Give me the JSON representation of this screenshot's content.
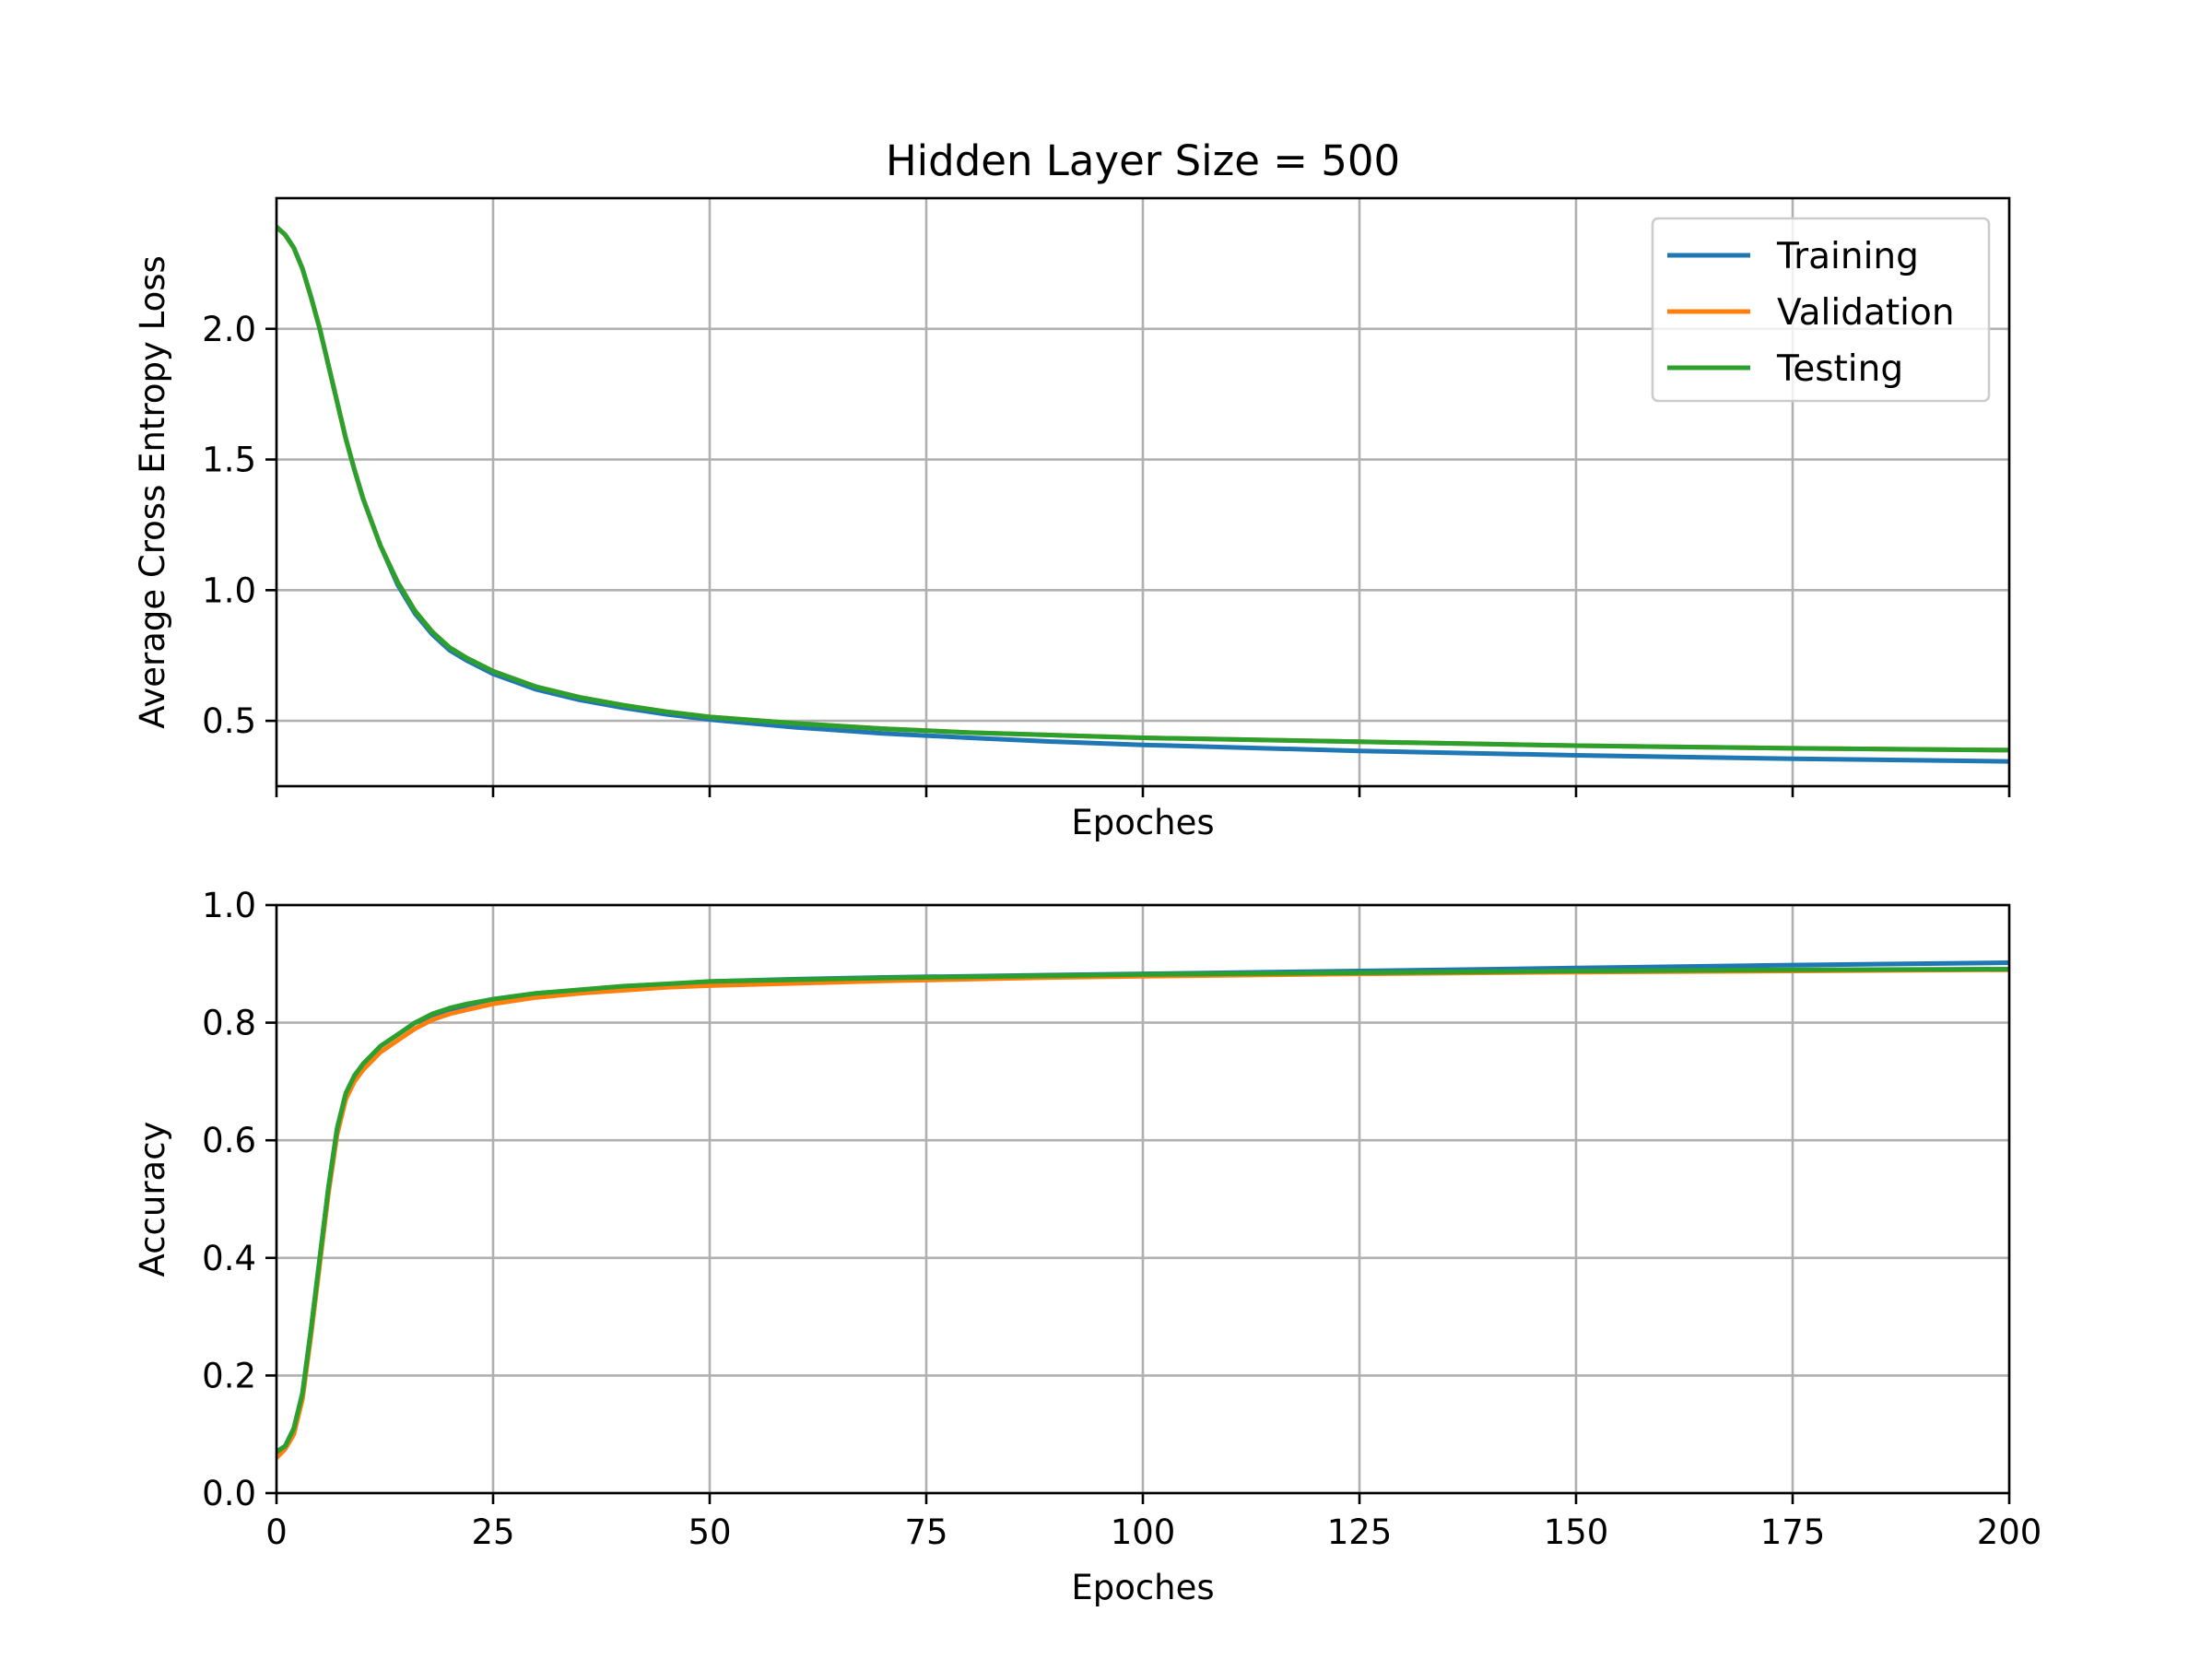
{
  "chart_data": [
    {
      "type": "line",
      "title": "Hidden Layer Size = 500",
      "xlabel": "Epoches",
      "ylabel": "Average Cross Entropy Loss",
      "xlim": [
        0,
        200
      ],
      "ylim": [
        0.25,
        2.5
      ],
      "xticks": [
        0,
        25,
        50,
        75,
        100,
        125,
        150,
        175,
        200
      ],
      "show_x_tick_labels": false,
      "yticks": [
        0.5,
        1.0,
        1.5,
        2.0
      ],
      "ytick_labels": [
        "0.5",
        "1.0",
        "1.5",
        "2.0"
      ],
      "grid": true,
      "legend_position": "top-right",
      "x": [
        0,
        1,
        2,
        3,
        4,
        5,
        6,
        7,
        8,
        9,
        10,
        12,
        14,
        16,
        18,
        20,
        22,
        25,
        30,
        35,
        40,
        45,
        50,
        60,
        70,
        80,
        90,
        100,
        125,
        150,
        175,
        200
      ],
      "series": [
        {
          "name": "Training",
          "color": "#1f77b4",
          "values": [
            2.39,
            2.36,
            2.31,
            2.23,
            2.12,
            2.0,
            1.86,
            1.72,
            1.58,
            1.46,
            1.35,
            1.17,
            1.02,
            0.91,
            0.83,
            0.77,
            0.73,
            0.68,
            0.62,
            0.58,
            0.55,
            0.525,
            0.505,
            0.475,
            0.452,
            0.435,
            0.42,
            0.408,
            0.385,
            0.368,
            0.355,
            0.345
          ]
        },
        {
          "name": "Validation",
          "color": "#ff7f0e",
          "values": [
            2.39,
            2.36,
            2.31,
            2.23,
            2.12,
            2.0,
            1.86,
            1.72,
            1.58,
            1.46,
            1.35,
            1.17,
            1.03,
            0.92,
            0.84,
            0.78,
            0.74,
            0.69,
            0.63,
            0.59,
            0.56,
            0.535,
            0.515,
            0.49,
            0.47,
            0.455,
            0.445,
            0.435,
            0.42,
            0.405,
            0.395,
            0.388
          ]
        },
        {
          "name": "Testing",
          "color": "#2ca02c",
          "values": [
            2.39,
            2.36,
            2.31,
            2.23,
            2.12,
            2.0,
            1.86,
            1.72,
            1.58,
            1.46,
            1.35,
            1.17,
            1.03,
            0.92,
            0.84,
            0.78,
            0.74,
            0.69,
            0.63,
            0.59,
            0.56,
            0.535,
            0.515,
            0.49,
            0.47,
            0.455,
            0.445,
            0.435,
            0.42,
            0.405,
            0.395,
            0.388
          ]
        }
      ]
    },
    {
      "type": "line",
      "title": "",
      "xlabel": "Epoches",
      "ylabel": "Accuracy",
      "xlim": [
        0,
        200
      ],
      "ylim": [
        0.0,
        1.0
      ],
      "xticks": [
        0,
        25,
        50,
        75,
        100,
        125,
        150,
        175,
        200
      ],
      "xtick_labels": [
        "0",
        "25",
        "50",
        "75",
        "100",
        "125",
        "150",
        "175",
        "200"
      ],
      "show_x_tick_labels": true,
      "yticks": [
        0.0,
        0.2,
        0.4,
        0.6,
        0.8,
        1.0
      ],
      "ytick_labels": [
        "0.0",
        "0.2",
        "0.4",
        "0.6",
        "0.8",
        "1.0"
      ],
      "grid": true,
      "x": [
        0,
        1,
        2,
        3,
        4,
        5,
        6,
        7,
        8,
        9,
        10,
        12,
        14,
        16,
        18,
        20,
        22,
        25,
        30,
        35,
        40,
        45,
        50,
        60,
        70,
        80,
        90,
        100,
        125,
        150,
        175,
        200
      ],
      "series": [
        {
          "name": "Training",
          "color": "#1f77b4",
          "values": [
            0.07,
            0.08,
            0.11,
            0.17,
            0.28,
            0.4,
            0.52,
            0.62,
            0.68,
            0.71,
            0.73,
            0.76,
            0.78,
            0.8,
            0.81,
            0.82,
            0.83,
            0.84,
            0.85,
            0.855,
            0.86,
            0.865,
            0.87,
            0.874,
            0.877,
            0.879,
            0.881,
            0.883,
            0.888,
            0.893,
            0.898,
            0.902
          ]
        },
        {
          "name": "Validation",
          "color": "#ff7f0e",
          "values": [
            0.06,
            0.075,
            0.1,
            0.16,
            0.27,
            0.39,
            0.51,
            0.61,
            0.67,
            0.7,
            0.72,
            0.75,
            0.77,
            0.79,
            0.805,
            0.815,
            0.822,
            0.832,
            0.843,
            0.85,
            0.855,
            0.86,
            0.863,
            0.867,
            0.871,
            0.874,
            0.877,
            0.879,
            0.883,
            0.886,
            0.888,
            0.89
          ]
        },
        {
          "name": "Testing",
          "color": "#2ca02c",
          "values": [
            0.07,
            0.08,
            0.11,
            0.17,
            0.28,
            0.4,
            0.52,
            0.62,
            0.68,
            0.71,
            0.73,
            0.76,
            0.78,
            0.8,
            0.815,
            0.825,
            0.832,
            0.84,
            0.85,
            0.856,
            0.862,
            0.866,
            0.87,
            0.873,
            0.876,
            0.878,
            0.88,
            0.882,
            0.885,
            0.888,
            0.89,
            0.891
          ]
        }
      ]
    }
  ]
}
